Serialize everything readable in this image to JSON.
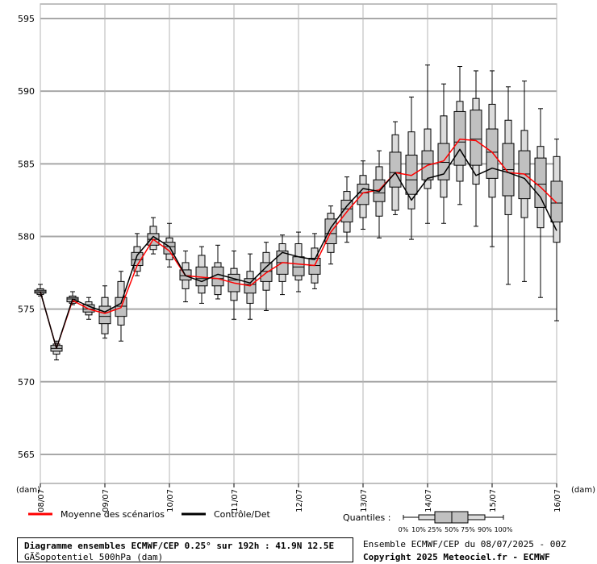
{
  "chart_data": {
    "type": "boxplot",
    "ylim": [
      563,
      596
    ],
    "yticks": [
      565,
      570,
      575,
      580,
      585,
      590,
      595
    ],
    "ylabel_left": "(dam)",
    "ylabel_right": "(dam)",
    "x_day_labels": [
      "08/07",
      "09/07",
      "10/07",
      "11/07",
      "12/07",
      "13/07",
      "14/07",
      "15/07",
      "16/07"
    ],
    "x_step_hours": 6,
    "boxes": [
      {
        "step": 0,
        "p0": 575.9,
        "p10": 576.0,
        "p25": 576.1,
        "p50": 576.2,
        "p75": 576.3,
        "p90": 576.4,
        "p100": 576.7
      },
      {
        "step": 1,
        "p0": 571.5,
        "p10": 571.9,
        "p25": 572.1,
        "p50": 572.3,
        "p75": 572.5,
        "p90": 572.6,
        "p100": 572.8
      },
      {
        "step": 2,
        "p0": 575.3,
        "p10": 575.4,
        "p25": 575.5,
        "p50": 575.7,
        "p75": 575.8,
        "p90": 575.9,
        "p100": 576.2
      },
      {
        "step": 3,
        "p0": 574.3,
        "p10": 574.6,
        "p25": 574.8,
        "p50": 575.0,
        "p75": 575.3,
        "p90": 575.5,
        "p100": 575.8
      },
      {
        "step": 4,
        "p0": 573.0,
        "p10": 573.3,
        "p25": 574.0,
        "p50": 574.5,
        "p75": 575.2,
        "p90": 575.8,
        "p100": 576.6
      },
      {
        "step": 5,
        "p0": 572.8,
        "p10": 573.9,
        "p25": 574.5,
        "p50": 575.2,
        "p75": 575.8,
        "p90": 576.9,
        "p100": 577.6
      },
      {
        "step": 6,
        "p0": 577.3,
        "p10": 577.6,
        "p25": 578.0,
        "p50": 578.4,
        "p75": 578.9,
        "p90": 579.3,
        "p100": 580.2
      },
      {
        "step": 7,
        "p0": 578.8,
        "p10": 579.1,
        "p25": 579.4,
        "p50": 579.8,
        "p75": 580.2,
        "p90": 580.7,
        "p100": 581.3
      },
      {
        "step": 8,
        "p0": 577.9,
        "p10": 578.4,
        "p25": 578.8,
        "p50": 579.3,
        "p75": 579.6,
        "p90": 579.9,
        "p100": 580.9
      },
      {
        "step": 9,
        "p0": 575.5,
        "p10": 576.4,
        "p25": 577.0,
        "p50": 577.3,
        "p75": 577.7,
        "p90": 578.2,
        "p100": 579.0
      },
      {
        "step": 10,
        "p0": 575.4,
        "p10": 576.1,
        "p25": 576.6,
        "p50": 577.1,
        "p75": 577.9,
        "p90": 578.7,
        "p100": 579.3
      },
      {
        "step": 11,
        "p0": 575.7,
        "p10": 576.0,
        "p25": 576.6,
        "p50": 577.1,
        "p75": 577.9,
        "p90": 578.2,
        "p100": 579.4
      },
      {
        "step": 12,
        "p0": 574.3,
        "p10": 575.6,
        "p25": 576.2,
        "p50": 577.0,
        "p75": 577.4,
        "p90": 577.8,
        "p100": 579.0
      },
      {
        "step": 13,
        "p0": 574.3,
        "p10": 575.4,
        "p25": 576.1,
        "p50": 576.7,
        "p75": 577.1,
        "p90": 577.6,
        "p100": 578.8
      },
      {
        "step": 14,
        "p0": 574.9,
        "p10": 576.3,
        "p25": 576.9,
        "p50": 577.6,
        "p75": 578.2,
        "p90": 578.9,
        "p100": 579.6
      },
      {
        "step": 15,
        "p0": 576.0,
        "p10": 576.9,
        "p25": 577.4,
        "p50": 578.2,
        "p75": 579.0,
        "p90": 579.5,
        "p100": 580.1
      },
      {
        "step": 16,
        "p0": 576.2,
        "p10": 577.0,
        "p25": 577.3,
        "p50": 577.9,
        "p75": 578.6,
        "p90": 579.5,
        "p100": 580.3
      },
      {
        "step": 17,
        "p0": 576.4,
        "p10": 576.8,
        "p25": 577.4,
        "p50": 578.0,
        "p75": 578.5,
        "p90": 579.2,
        "p100": 580.2
      },
      {
        "step": 18,
        "p0": 578.1,
        "p10": 578.9,
        "p25": 579.5,
        "p50": 580.2,
        "p75": 581.2,
        "p90": 581.6,
        "p100": 582.1
      },
      {
        "step": 19,
        "p0": 579.6,
        "p10": 580.3,
        "p25": 581.0,
        "p50": 581.9,
        "p75": 582.5,
        "p90": 583.1,
        "p100": 584.1
      },
      {
        "step": 20,
        "p0": 580.5,
        "p10": 581.3,
        "p25": 582.2,
        "p50": 583.0,
        "p75": 583.6,
        "p90": 584.2,
        "p100": 585.2
      },
      {
        "step": 21,
        "p0": 579.9,
        "p10": 581.4,
        "p25": 582.4,
        "p50": 583.0,
        "p75": 583.9,
        "p90": 584.8,
        "p100": 585.9
      },
      {
        "step": 22,
        "p0": 581.5,
        "p10": 581.8,
        "p25": 583.4,
        "p50": 584.4,
        "p75": 585.8,
        "p90": 587.0,
        "p100": 587.9
      },
      {
        "step": 23,
        "p0": 579.8,
        "p10": 581.9,
        "p25": 582.9,
        "p50": 583.9,
        "p75": 585.6,
        "p90": 587.2,
        "p100": 589.6
      },
      {
        "step": 24,
        "p0": 580.9,
        "p10": 583.3,
        "p25": 583.9,
        "p50": 585.0,
        "p75": 585.9,
        "p90": 587.4,
        "p100": 591.8
      },
      {
        "step": 25,
        "p0": 580.9,
        "p10": 582.7,
        "p25": 583.9,
        "p50": 585.1,
        "p75": 586.4,
        "p90": 588.3,
        "p100": 590.5
      },
      {
        "step": 26,
        "p0": 582.2,
        "p10": 583.8,
        "p25": 584.9,
        "p50": 586.5,
        "p75": 588.6,
        "p90": 589.3,
        "p100": 591.7
      },
      {
        "step": 27,
        "p0": 580.7,
        "p10": 583.6,
        "p25": 584.9,
        "p50": 586.7,
        "p75": 588.7,
        "p90": 589.5,
        "p100": 591.4
      },
      {
        "step": 28,
        "p0": 579.3,
        "p10": 582.7,
        "p25": 584.0,
        "p50": 585.8,
        "p75": 587.4,
        "p90": 589.1,
        "p100": 591.4
      },
      {
        "step": 29,
        "p0": 576.7,
        "p10": 581.5,
        "p25": 582.8,
        "p50": 584.6,
        "p75": 586.4,
        "p90": 588.0,
        "p100": 590.3
      },
      {
        "step": 30,
        "p0": 576.9,
        "p10": 581.3,
        "p25": 582.6,
        "p50": 584.3,
        "p75": 585.9,
        "p90": 587.3,
        "p100": 590.7
      },
      {
        "step": 31,
        "p0": 575.8,
        "p10": 580.6,
        "p25": 582.0,
        "p50": 583.6,
        "p75": 585.4,
        "p90": 586.2,
        "p100": 588.8
      },
      {
        "step": 32,
        "p0": 574.2,
        "p10": 579.6,
        "p25": 581.0,
        "p50": 582.3,
        "p75": 583.8,
        "p90": 585.5,
        "p100": 586.7
      }
    ],
    "series": [
      {
        "name": "Moyenne des scénarios",
        "color": "#ff0000",
        "values": [
          576.2,
          572.3,
          575.6,
          575.0,
          574.7,
          575.1,
          578.0,
          579.8,
          579.0,
          577.3,
          577.2,
          577.1,
          576.8,
          576.6,
          577.5,
          578.2,
          578.1,
          578.0,
          580.3,
          581.7,
          583.0,
          583.2,
          584.4,
          584.2,
          584.9,
          585.2,
          586.7,
          586.6,
          585.8,
          584.4,
          584.3,
          583.4,
          582.3
        ]
      },
      {
        "name": "Contrôle/Det",
        "color": "#000000",
        "values": [
          576.2,
          572.3,
          575.7,
          575.2,
          574.8,
          575.4,
          578.7,
          580.0,
          579.3,
          577.3,
          576.9,
          577.4,
          577.1,
          576.8,
          577.9,
          578.9,
          578.6,
          578.4,
          580.6,
          582.1,
          583.3,
          583.1,
          584.4,
          582.5,
          584.0,
          584.3,
          586.0,
          584.2,
          584.7,
          584.4,
          584.0,
          582.7,
          580.4
        ]
      }
    ],
    "quantiles_legend": {
      "label": "Quantiles :",
      "levels": [
        "0%",
        "10%",
        "25%",
        "50%",
        "75%",
        "90%",
        "100%"
      ]
    },
    "title_line1": "Diagramme ensembles ECMWF/CEP 0.25° sur 192h : 41.9N 12.5E",
    "title_line2": "GÃŠopotentiel 500hPa (dam)",
    "info_line1": "Ensemble ECMWF/CEP du 08/07/2025 - 00Z",
    "info_line2": "Copyright 2025 Meteociel.fr - ECMWF"
  }
}
